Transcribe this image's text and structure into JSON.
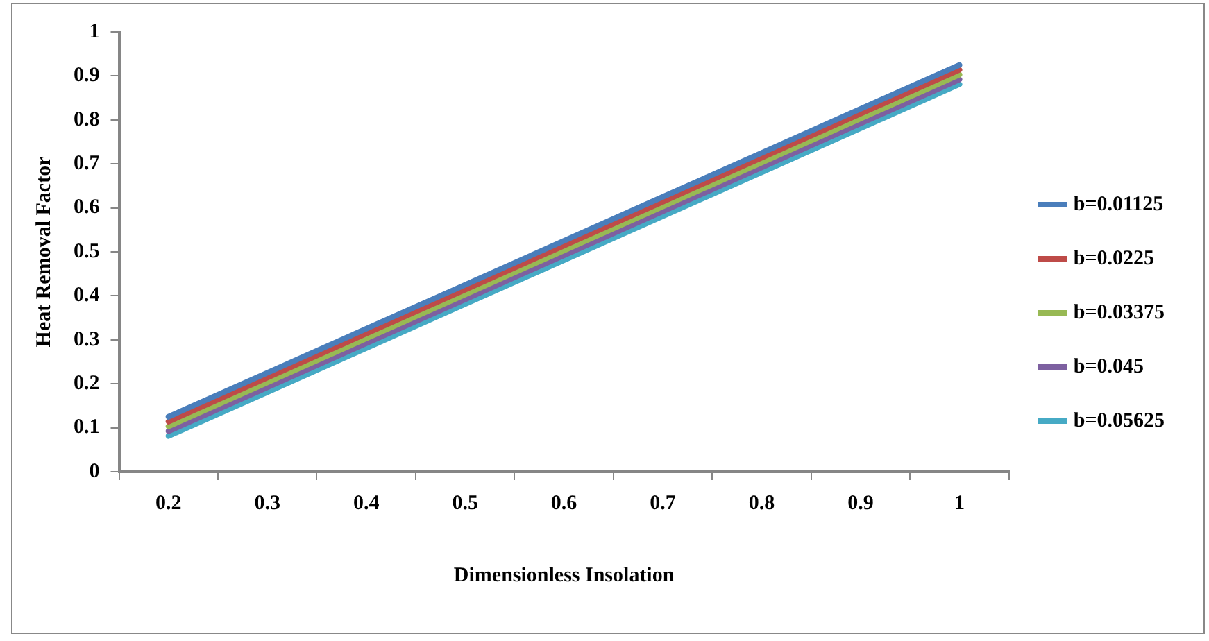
{
  "chart_data": {
    "type": "line",
    "xlabel": "Dimensionless Insolation",
    "ylabel": "Heat Removal Factor",
    "categories": [
      "0.2",
      "0.3",
      "0.4",
      "0.5",
      "0.6",
      "0.7",
      "0.8",
      "0.9",
      "1"
    ],
    "ylim": [
      0,
      1
    ],
    "yticks": [
      0,
      0.1,
      0.2,
      0.3,
      0.4,
      0.5,
      0.6,
      0.7,
      0.8,
      0.9,
      1
    ],
    "legend": "right",
    "marker": "none",
    "line_style": "solid",
    "series": [
      {
        "name": "b=0.01125",
        "color": "#4a7ebb",
        "values": [
          0.125,
          0.225,
          0.325,
          0.425,
          0.525,
          0.625,
          0.725,
          0.825,
          0.925
        ]
      },
      {
        "name": "b=0.0225",
        "color": "#be4b48",
        "values": [
          0.114,
          0.214,
          0.314,
          0.414,
          0.514,
          0.614,
          0.714,
          0.814,
          0.914
        ]
      },
      {
        "name": "b=0.03375",
        "color": "#98b954",
        "values": [
          0.103,
          0.203,
          0.303,
          0.403,
          0.503,
          0.603,
          0.703,
          0.803,
          0.903
        ]
      },
      {
        "name": "b=0.045",
        "color": "#7d60a0",
        "values": [
          0.092,
          0.192,
          0.292,
          0.392,
          0.492,
          0.592,
          0.692,
          0.792,
          0.892
        ]
      },
      {
        "name": "b=0.05625",
        "color": "#46aac5",
        "values": [
          0.081,
          0.181,
          0.281,
          0.381,
          0.481,
          0.581,
          0.681,
          0.781,
          0.881
        ]
      }
    ]
  }
}
